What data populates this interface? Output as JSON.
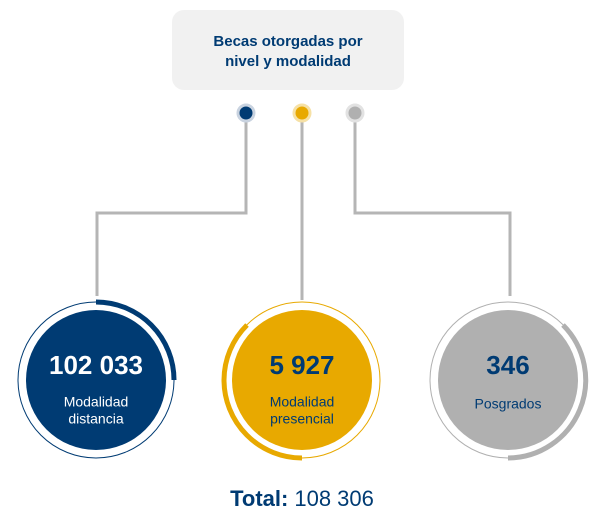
{
  "header": {
    "title_lines": [
      "Becas otorgadas por",
      "nivel y modalidad"
    ]
  },
  "nodes": [
    {
      "value": "102 033",
      "label_lines": [
        "Modalidad",
        "distancia"
      ]
    },
    {
      "value": "5 927",
      "label_lines": [
        "Modalidad",
        "presencial"
      ]
    },
    {
      "value": "346",
      "label_lines": [
        "Posgrados"
      ]
    }
  ],
  "total": {
    "label": "Total:",
    "value": "108 306"
  }
}
